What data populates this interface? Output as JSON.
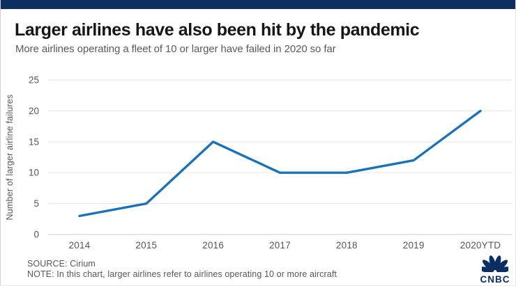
{
  "header": {
    "title": "Larger airlines have also been hit by the pandemic",
    "subtitle": "More airlines operating a fleet of 10 or larger have failed in 2020 so far"
  },
  "chart_data": {
    "type": "line",
    "categories": [
      "2014",
      "2015",
      "2016",
      "2017",
      "2018",
      "2019",
      "2020YTD"
    ],
    "values": [
      3,
      5,
      15,
      10,
      10,
      12,
      20
    ],
    "title": "",
    "xlabel": "",
    "ylabel": "Number of larger airline failures",
    "ylim": [
      0,
      25
    ],
    "yticks": [
      0,
      5,
      10,
      15,
      20,
      25
    ],
    "grid": "horizontal",
    "legend": "none",
    "line_color": "#1c72b8"
  },
  "footer": {
    "source": "SOURCE: Cirium",
    "note": "NOTE: In this chart, larger airlines refer to airlines operating 10 or more aircraft"
  },
  "branding": {
    "logo_text": "CNBC",
    "logo_icon": "nbc-peacock-icon",
    "logo_color": "#0b2d64"
  },
  "colors": {
    "top_bar": "#0c2e63",
    "accent_line": "#1c72b8",
    "gridline": "#e8e8e8",
    "zero_line": "#d7d7d7",
    "axis_text": "#54575e"
  }
}
